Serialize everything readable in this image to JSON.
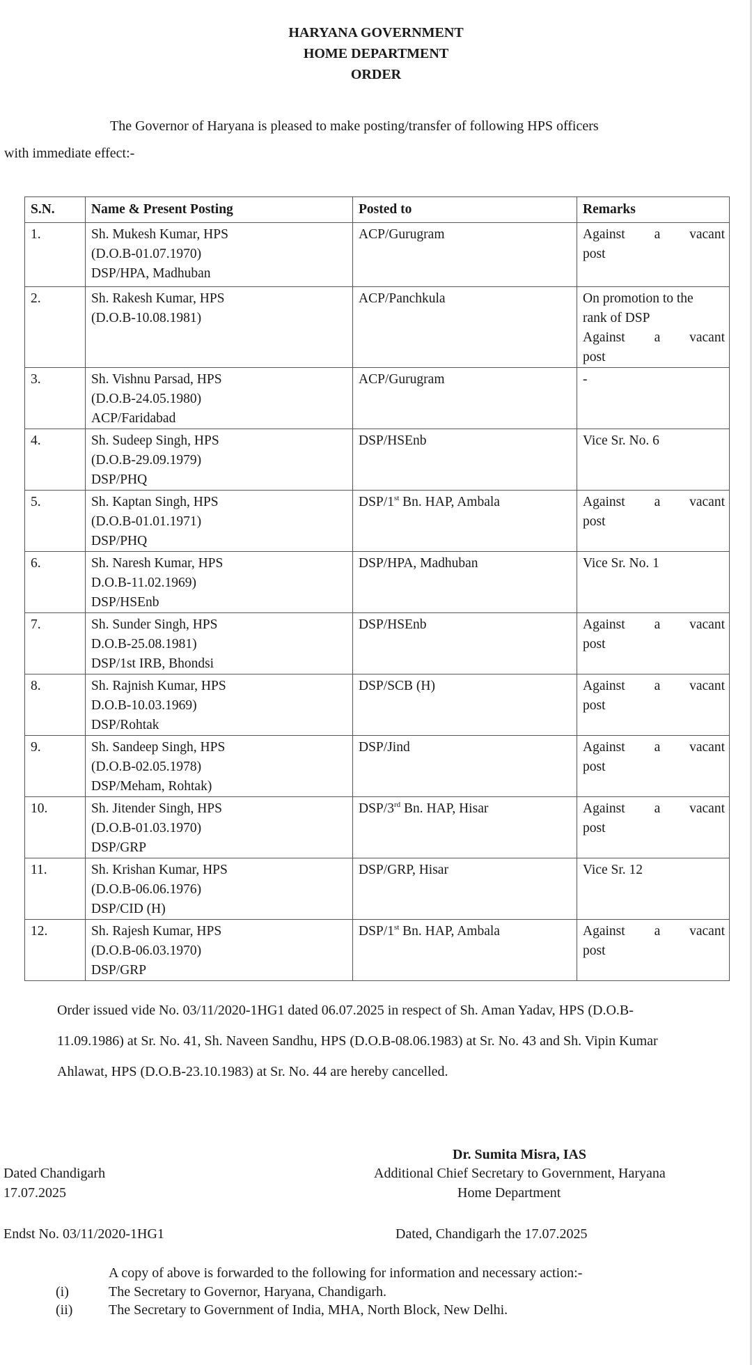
{
  "header": {
    "line1": "HARYANA GOVERNMENT",
    "line2": "HOME DEPARTMENT",
    "line3": "ORDER"
  },
  "intro": {
    "line1": "The Governor of Haryana is pleased to make posting/transfer of following HPS officers",
    "line2": "with immediate effect:-"
  },
  "table": {
    "headers": [
      "S.N.",
      "Name & Present Posting",
      "Posted to",
      "Remarks"
    ],
    "rows": [
      {
        "sn": "1.",
        "name": [
          "Sh. Mukesh Kumar, HPS",
          "(D.O.B-01.07.1970)",
          "DSP/HPA, Madhuban"
        ],
        "posted": {
          "pre": "ACP/Gurugram"
        },
        "remarks": [
          [
            "Against",
            "a",
            "vacant"
          ],
          [
            "post"
          ]
        ]
      },
      {
        "sn": "2.",
        "name": [
          "Sh. Rakesh Kumar, HPS",
          "(D.O.B-10.08.1981)"
        ],
        "posted": {
          "pre": "ACP/Panchkula"
        },
        "remarks": [
          [
            "On promotion to the"
          ],
          [
            "rank of DSP"
          ],
          [
            "Against",
            "a",
            "vacant"
          ],
          [
            "post"
          ]
        ]
      },
      {
        "sn": "3.",
        "name": [
          "Sh. Vishnu Parsad, HPS",
          "(D.O.B-24.05.1980)",
          "ACP/Faridabad"
        ],
        "posted": {
          "pre": "ACP/Gurugram"
        },
        "remarks": [
          [
            "-"
          ]
        ]
      },
      {
        "sn": "4.",
        "name": [
          "Sh. Sudeep Singh, HPS",
          "(D.O.B-29.09.1979)",
          "DSP/PHQ"
        ],
        "posted": {
          "pre": "DSP/HSEnb"
        },
        "remarks": [
          [
            "Vice Sr. No. 6"
          ]
        ]
      },
      {
        "sn": "5.",
        "name": [
          "Sh. Kaptan Singh, HPS",
          "(D.O.B-01.01.1971)",
          "DSP/PHQ"
        ],
        "posted": {
          "pre": "DSP/1",
          "sup": "st",
          "post": " Bn. HAP, Ambala"
        },
        "remarks": [
          [
            "Against",
            "a",
            "vacant"
          ],
          [
            "post"
          ]
        ]
      },
      {
        "sn": "6.",
        "name": [
          "Sh. Naresh Kumar, HPS",
          "D.O.B-11.02.1969)",
          "DSP/HSEnb"
        ],
        "posted": {
          "pre": "DSP/HPA, Madhuban"
        },
        "remarks": [
          [
            "Vice Sr. No. 1"
          ]
        ]
      },
      {
        "sn": "7.",
        "name": [
          "Sh. Sunder Singh, HPS",
          "D.O.B-25.08.1981)",
          "DSP/1st IRB, Bhondsi"
        ],
        "posted": {
          "pre": "DSP/HSEnb"
        },
        "remarks": [
          [
            "Against",
            "a",
            "vacant"
          ],
          [
            "post"
          ]
        ]
      },
      {
        "sn": "8.",
        "name": [
          "Sh. Rajnish Kumar, HPS",
          "D.O.B-10.03.1969)",
          "DSP/Rohtak"
        ],
        "posted": {
          "pre": "DSP/SCB (H)"
        },
        "remarks": [
          [
            "Against",
            "a",
            "vacant"
          ],
          [
            "post"
          ]
        ]
      },
      {
        "sn": "9.",
        "name": [
          "Sh. Sandeep Singh, HPS",
          "(D.O.B-02.05.1978)",
          "DSP/Meham, Rohtak)"
        ],
        "posted": {
          "pre": "DSP/Jind"
        },
        "remarks": [
          [
            "Against",
            "a",
            "vacant"
          ],
          [
            "post"
          ]
        ]
      },
      {
        "sn": "10.",
        "name": [
          "Sh. Jitender Singh, HPS",
          "(D.O.B-01.03.1970)",
          "DSP/GRP"
        ],
        "posted": {
          "pre": "DSP/3",
          "sup": "rd",
          "post": " Bn. HAP, Hisar"
        },
        "remarks": [
          [
            "Against",
            "a",
            "vacant"
          ],
          [
            "post"
          ]
        ]
      },
      {
        "sn": "11.",
        "name": [
          "Sh. Krishan Kumar, HPS",
          "(D.O.B-06.06.1976)",
          "DSP/CID (H)"
        ],
        "posted": {
          "pre": "DSP/GRP, Hisar"
        },
        "remarks": [
          [
            "Vice Sr. 12"
          ]
        ]
      },
      {
        "sn": "12.",
        "name": [
          "Sh. Rajesh Kumar, HPS",
          "(D.O.B-06.03.1970)",
          "DSP/GRP"
        ],
        "posted": {
          "pre": "DSP/1",
          "sup": "st",
          "post": " Bn. HAP, Ambala"
        },
        "remarks": [
          [
            "Against",
            "a",
            "vacant"
          ],
          [
            "post"
          ]
        ]
      }
    ]
  },
  "cancellation": "Order issued vide No. 03/11/2020-1HG1 dated 06.07.2025 in respect of Sh. Aman Yadav, HPS (D.O.B-11.09.1986) at Sr. No. 41, Sh. Naveen Sandhu, HPS (D.O.B-08.06.1983) at Sr. No. 43 and Sh. Vipin Kumar Ahlawat, HPS (D.O.B-23.10.1983) at Sr. No. 44  are hereby cancelled.",
  "signature": {
    "name": "Dr. Sumita Misra, IAS",
    "designation": "Additional Chief Secretary to Government, Haryana",
    "department": "Home Department"
  },
  "dated": {
    "place": "Dated Chandigarh",
    "date": "17.07.2025"
  },
  "endorsement": {
    "number": "Endst No. 03/11/2020-1HG1",
    "dated": "Dated, Chandigarh the 17.07.2025",
    "intro": "A copy of above is forwarded to the following for information and necessary action:-",
    "recipients": [
      {
        "num": "(i)",
        "text": "The Secretary to Governor, Haryana, Chandigarh."
      },
      {
        "num": "(ii)",
        "text": "The Secretary to Government of India, MHA, North Block, New Delhi."
      }
    ]
  }
}
